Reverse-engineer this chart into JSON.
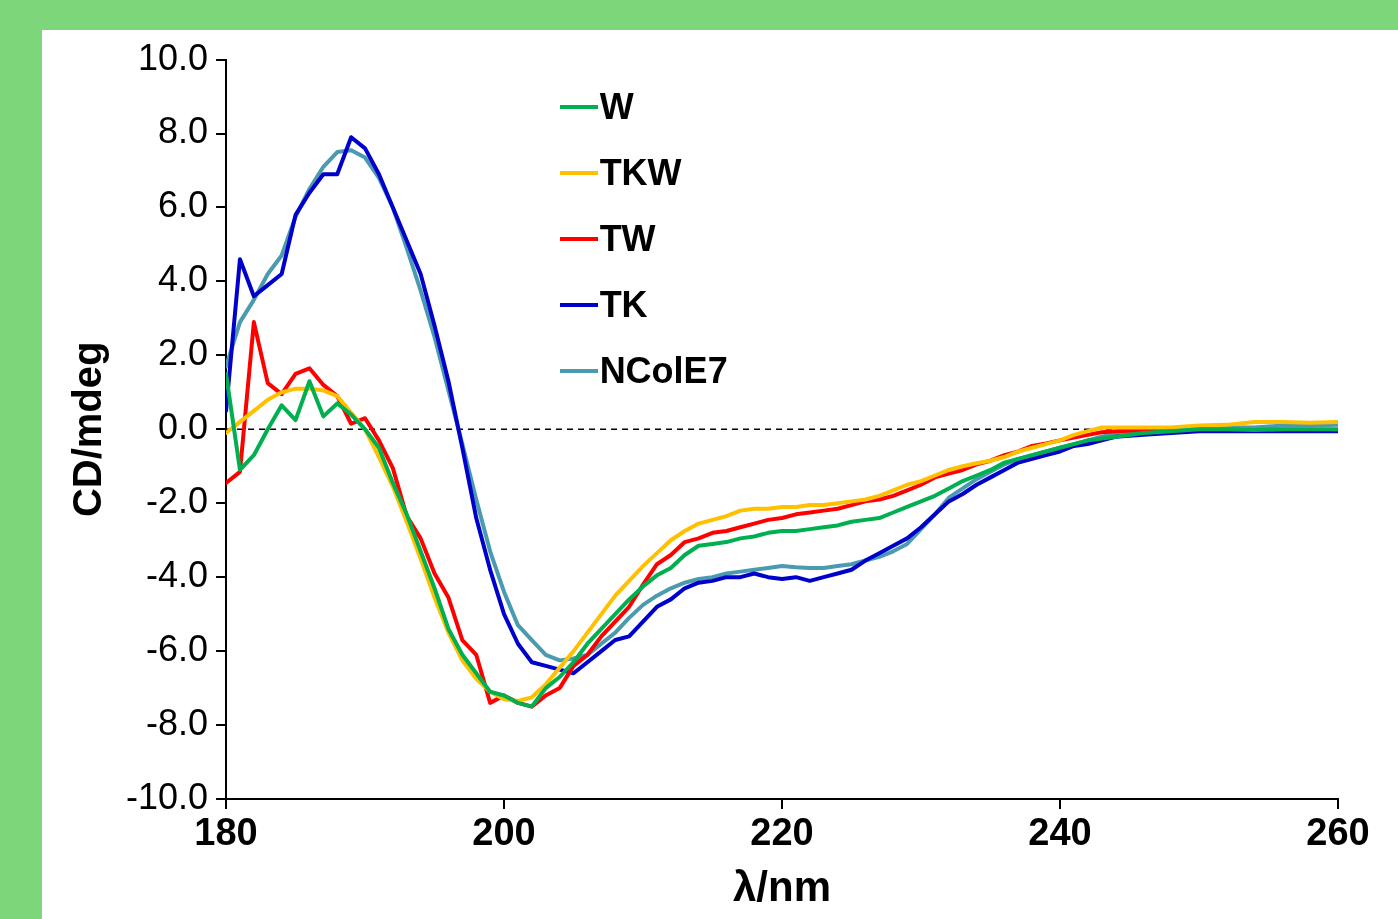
{
  "chart_data": {
    "type": "line",
    "xlabel": "λ/nm",
    "ylabel": "CD/mdeg",
    "x": [
      180,
      181,
      182,
      183,
      184,
      185,
      186,
      187,
      188,
      189,
      190,
      191,
      192,
      193,
      194,
      195,
      196,
      197,
      198,
      199,
      200,
      201,
      202,
      203,
      204,
      205,
      206,
      207,
      208,
      209,
      210,
      211,
      212,
      213,
      214,
      215,
      216,
      217,
      218,
      219,
      220,
      221,
      222,
      223,
      224,
      225,
      226,
      227,
      228,
      229,
      230,
      231,
      232,
      233,
      234,
      235,
      236,
      237,
      238,
      239,
      240,
      241,
      242,
      243,
      244,
      246,
      248,
      250,
      252,
      254,
      256,
      258,
      260
    ],
    "series": [
      {
        "name": "W",
        "color": "#00b050",
        "values": [
          1.5,
          -1.1,
          -0.7,
          0.0,
          0.65,
          0.25,
          1.3,
          0.35,
          0.7,
          0.4,
          0.0,
          -0.5,
          -1.45,
          -2.3,
          -3.3,
          -4.3,
          -5.4,
          -6.1,
          -6.6,
          -7.1,
          -7.2,
          -7.4,
          -7.5,
          -7.0,
          -6.7,
          -6.3,
          -5.8,
          -5.4,
          -5.0,
          -4.6,
          -4.25,
          -3.95,
          -3.75,
          -3.4,
          -3.15,
          -3.1,
          -3.05,
          -2.95,
          -2.9,
          -2.8,
          -2.75,
          -2.75,
          -2.7,
          -2.65,
          -2.6,
          -2.5,
          -2.45,
          -2.4,
          -2.25,
          -2.1,
          -1.95,
          -1.8,
          -1.6,
          -1.4,
          -1.25,
          -1.1,
          -0.9,
          -0.8,
          -0.7,
          -0.6,
          -0.5,
          -0.4,
          -0.3,
          -0.25,
          -0.2,
          -0.1,
          -0.05,
          0.0,
          0.0,
          -0.02,
          0.0,
          0.0,
          0.0
        ]
      },
      {
        "name": "TKW",
        "color": "#ffc000",
        "values": [
          -0.1,
          0.2,
          0.5,
          0.8,
          1.0,
          1.1,
          1.1,
          1.05,
          0.9,
          0.45,
          0.0,
          -0.75,
          -1.55,
          -2.5,
          -3.5,
          -4.55,
          -5.5,
          -6.25,
          -6.75,
          -7.1,
          -7.3,
          -7.35,
          -7.25,
          -6.9,
          -6.45,
          -6.0,
          -5.5,
          -5.0,
          -4.5,
          -4.1,
          -3.7,
          -3.35,
          -3.0,
          -2.75,
          -2.55,
          -2.45,
          -2.35,
          -2.2,
          -2.15,
          -2.15,
          -2.1,
          -2.1,
          -2.05,
          -2.05,
          -2.0,
          -1.95,
          -1.9,
          -1.8,
          -1.65,
          -1.5,
          -1.4,
          -1.25,
          -1.1,
          -1.0,
          -0.92,
          -0.85,
          -0.75,
          -0.6,
          -0.5,
          -0.4,
          -0.3,
          -0.15,
          -0.05,
          0.05,
          0.05,
          0.05,
          0.05,
          0.1,
          0.12,
          0.2,
          0.2,
          0.18,
          0.2
        ]
      },
      {
        "name": "TW",
        "color": "#ff0000",
        "values": [
          -1.45,
          -1.15,
          2.9,
          1.25,
          0.95,
          1.5,
          1.65,
          1.2,
          0.9,
          0.15,
          0.3,
          -0.3,
          -1.05,
          -2.35,
          -2.95,
          -3.9,
          -4.55,
          -5.7,
          -6.1,
          -7.4,
          -7.2,
          -7.4,
          -7.5,
          -7.2,
          -7.0,
          -6.4,
          -6.1,
          -5.6,
          -5.2,
          -4.8,
          -4.2,
          -3.65,
          -3.4,
          -3.05,
          -2.95,
          -2.8,
          -2.75,
          -2.65,
          -2.55,
          -2.45,
          -2.4,
          -2.3,
          -2.25,
          -2.2,
          -2.15,
          -2.05,
          -1.95,
          -1.9,
          -1.8,
          -1.65,
          -1.5,
          -1.3,
          -1.2,
          -1.1,
          -0.95,
          -0.85,
          -0.7,
          -0.6,
          -0.45,
          -0.38,
          -0.3,
          -0.22,
          -0.15,
          -0.08,
          -0.05,
          -0.02,
          0.0,
          null,
          null,
          null,
          null,
          null,
          null
        ]
      },
      {
        "name": "TK",
        "color": "#0000cc",
        "values": [
          0.5,
          4.6,
          3.6,
          3.9,
          4.2,
          5.8,
          6.4,
          6.9,
          6.9,
          7.9,
          7.6,
          6.9,
          6.0,
          5.1,
          4.2,
          2.8,
          1.3,
          -0.5,
          -2.4,
          -3.8,
          -5.0,
          -5.8,
          -6.3,
          -6.4,
          -6.5,
          -6.6,
          -6.3,
          -6.0,
          -5.7,
          -5.6,
          -5.2,
          -4.8,
          -4.6,
          -4.3,
          -4.15,
          -4.1,
          -4.0,
          -4.0,
          -3.9,
          -4.0,
          -4.05,
          -4.0,
          -4.1,
          -4.0,
          -3.9,
          -3.8,
          -3.55,
          -3.35,
          -3.15,
          -2.95,
          -2.65,
          -2.3,
          -1.95,
          -1.75,
          -1.5,
          -1.3,
          -1.1,
          -0.9,
          -0.8,
          -0.7,
          -0.6,
          -0.45,
          -0.4,
          -0.3,
          -0.2,
          -0.15,
          -0.1,
          -0.05,
          -0.05,
          -0.05,
          -0.05,
          -0.05,
          -0.05
        ]
      },
      {
        "name": "NColE7",
        "color": "#4a9ab0",
        "values": [
          1.7,
          2.9,
          3.5,
          4.2,
          4.7,
          5.75,
          6.5,
          7.1,
          7.5,
          7.55,
          7.35,
          6.8,
          6.0,
          4.9,
          3.75,
          2.5,
          1.05,
          -0.4,
          -1.9,
          -3.3,
          -4.4,
          -5.3,
          -5.7,
          -6.1,
          -6.25,
          -6.2,
          -6.1,
          -5.8,
          -5.5,
          -5.1,
          -4.75,
          -4.5,
          -4.3,
          -4.15,
          -4.05,
          -4.0,
          -3.9,
          -3.85,
          -3.8,
          -3.75,
          -3.7,
          -3.73,
          -3.75,
          -3.75,
          -3.7,
          -3.65,
          -3.55,
          -3.45,
          -3.3,
          -3.1,
          -2.7,
          -2.3,
          -1.85,
          -1.6,
          -1.35,
          -1.15,
          -0.95,
          -0.8,
          -0.7,
          -0.6,
          -0.5,
          -0.4,
          -0.3,
          -0.2,
          -0.12,
          -0.05,
          0.02,
          0.05,
          0.05,
          0.05,
          0.1,
          0.1,
          0.12
        ]
      }
    ],
    "xlim": [
      180,
      260
    ],
    "xticks": [
      180,
      200,
      220,
      240,
      260
    ],
    "ylim": [
      -10,
      10
    ],
    "yticks": [
      {
        "value": -10,
        "label": "-10.0"
      },
      {
        "value": -8,
        "label": "-8.0"
      },
      {
        "value": -6,
        "label": "-6.0"
      },
      {
        "value": -4,
        "label": "-4.0"
      },
      {
        "value": -2,
        "label": "-2.0"
      },
      {
        "value": 0,
        "label": "0.0"
      },
      {
        "value": 2,
        "label": "2.0"
      },
      {
        "value": 4,
        "label": "4.0"
      },
      {
        "value": 6,
        "label": "6.0"
      },
      {
        "value": 8,
        "label": "8.0"
      },
      {
        "value": 10,
        "label": "10.0"
      }
    ],
    "ref_lines": [
      {
        "axis": "y",
        "value": 0,
        "label": null,
        "color": "#000000",
        "line_style": "dashed"
      }
    ],
    "grid": false,
    "legend": "top left",
    "marker": "none",
    "line_style": "solid"
  }
}
